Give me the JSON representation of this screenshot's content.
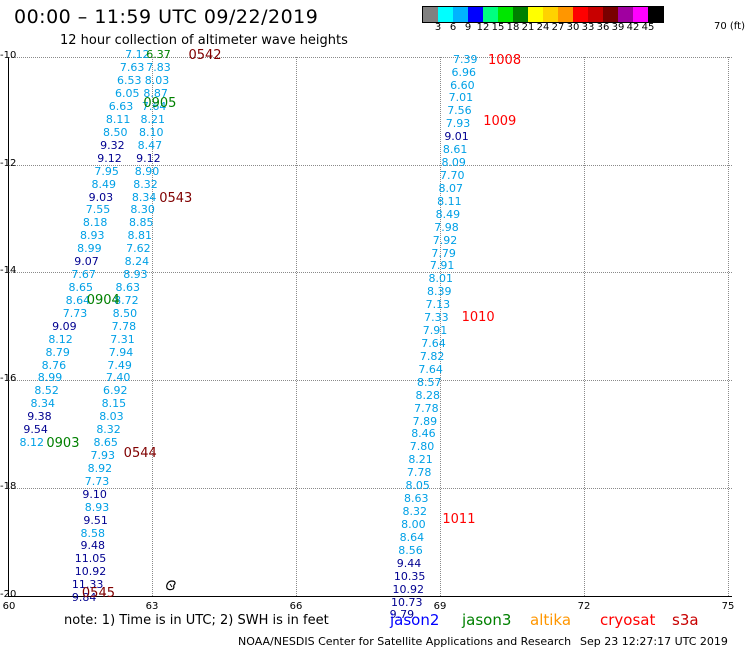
{
  "title": "00:00 – 11:59 UTC 09/22/2019",
  "subtitle": "12 hour collection of altimeter wave heights",
  "scale": {
    "labels": [
      "3",
      "6",
      "9",
      "12",
      "15",
      "18",
      "21",
      "24",
      "27",
      "30",
      "33",
      "36",
      "39",
      "42",
      "45",
      "70 (ft)"
    ],
    "colors": [
      "#808080",
      "#00ffff",
      "#00b4ff",
      "#0000ff",
      "#00ff80",
      "#00e600",
      "#008000",
      "#ffff00",
      "#ffd200",
      "#ff9600",
      "#ff0000",
      "#c80000",
      "#780000",
      "#a000a0",
      "#ff00ff",
      "#000000"
    ]
  },
  "axes": {
    "lon_labels": [
      "60",
      "63",
      "66",
      "69",
      "72",
      "75"
    ],
    "lat_labels": [
      "-10",
      "-12",
      "-14",
      "-16",
      "-18",
      "-20"
    ]
  },
  "note": "note:  1) Time is in UTC;  2) SWH is in feet",
  "satellites": [
    {
      "name": "jason2",
      "color": "#0000ff"
    },
    {
      "name": "jason3",
      "color": "#008000"
    },
    {
      "name": "altika",
      "color": "#ff9600"
    },
    {
      "name": "cryosat",
      "color": "#ff0000"
    },
    {
      "name": "s3a",
      "color": "#c80000"
    }
  ],
  "credit": "NOAA/NESDIS Center for Satellite Applications and Research",
  "timestamp": "Sep 23 12:27:17 UTC 2019",
  "colors": {
    "cyan": "#00a0e6",
    "navy": "#000090",
    "green": "#008000",
    "maroon": "#800000",
    "red": "#ff0000"
  },
  "map_data": {
    "swh": [
      {
        "v": "7.12",
        "c": "#00a0e6",
        "lon": 62.44,
        "lat": -9.97
      },
      {
        "v": "7.63",
        "c": "#00a0e6",
        "lon": 62.33,
        "lat": -10.21
      },
      {
        "v": "6.53",
        "c": "#00a0e6",
        "lon": 62.27,
        "lat": -10.45
      },
      {
        "v": "6.05",
        "c": "#00a0e6",
        "lon": 62.23,
        "lat": -10.69
      },
      {
        "v": "6.63",
        "c": "#00a0e6",
        "lon": 62.1,
        "lat": -10.93
      },
      {
        "v": "8.11",
        "c": "#00a0e6",
        "lon": 62.04,
        "lat": -11.17
      },
      {
        "v": "8.50",
        "c": "#00a0e6",
        "lon": 61.98,
        "lat": -11.41
      },
      {
        "v": "9.32",
        "c": "#000090",
        "lon": 61.92,
        "lat": -11.65
      },
      {
        "v": "9.12",
        "c": "#000090",
        "lon": 61.86,
        "lat": -11.89
      },
      {
        "v": "7.95",
        "c": "#00a0e6",
        "lon": 61.8,
        "lat": -12.13
      },
      {
        "v": "8.49",
        "c": "#00a0e6",
        "lon": 61.74,
        "lat": -12.37
      },
      {
        "v": "9.03",
        "c": "#000090",
        "lon": 61.68,
        "lat": -12.61
      },
      {
        "v": "7.55",
        "c": "#00a0e6",
        "lon": 61.62,
        "lat": -12.85
      },
      {
        "v": "8.18",
        "c": "#00a0e6",
        "lon": 61.56,
        "lat": -13.09
      },
      {
        "v": "8.93",
        "c": "#00a0e6",
        "lon": 61.5,
        "lat": -13.33
      },
      {
        "v": "8.99",
        "c": "#00a0e6",
        "lon": 61.44,
        "lat": -13.57
      },
      {
        "v": "9.07",
        "c": "#000090",
        "lon": 61.38,
        "lat": -13.81
      },
      {
        "v": "7.67",
        "c": "#00a0e6",
        "lon": 61.32,
        "lat": -14.05
      },
      {
        "v": "8.65",
        "c": "#00a0e6",
        "lon": 61.26,
        "lat": -14.29
      },
      {
        "v": "8.64",
        "c": "#00a0e6",
        "lon": 61.2,
        "lat": -14.53
      },
      {
        "v": "7.73",
        "c": "#00a0e6",
        "lon": 61.14,
        "lat": -14.77
      },
      {
        "v": "9.09",
        "c": "#000090",
        "lon": 60.92,
        "lat": -15.01
      },
      {
        "v": "8.12",
        "c": "#00a0e6",
        "lon": 60.84,
        "lat": -15.25
      },
      {
        "v": "8.79",
        "c": "#00a0e6",
        "lon": 60.78,
        "lat": -15.49
      },
      {
        "v": "8.76",
        "c": "#00a0e6",
        "lon": 60.7,
        "lat": -15.73
      },
      {
        "v": "8.99",
        "c": "#00a0e6",
        "lon": 60.62,
        "lat": -15.97
      },
      {
        "v": "8.52",
        "c": "#00a0e6",
        "lon": 60.55,
        "lat": -16.21
      },
      {
        "v": "8.34",
        "c": "#00a0e6",
        "lon": 60.47,
        "lat": -16.45
      },
      {
        "v": "9.38",
        "c": "#000090",
        "lon": 60.4,
        "lat": -16.69
      },
      {
        "v": "9.54",
        "c": "#000090",
        "lon": 60.32,
        "lat": -16.93
      },
      {
        "v": "8.12",
        "c": "#00a0e6",
        "lon": 60.24,
        "lat": -17.17
      },
      {
        "v": "6.37",
        "c": "#008000",
        "lon": 62.88,
        "lat": -9.97
      },
      {
        "v": "7.83",
        "c": "#00a0e6",
        "lon": 62.88,
        "lat": -10.21
      },
      {
        "v": "8.03",
        "c": "#00a0e6",
        "lon": 62.85,
        "lat": -10.45
      },
      {
        "v": "8.87",
        "c": "#00a0e6",
        "lon": 62.82,
        "lat": -10.69
      },
      {
        "v": "7.64",
        "c": "#00a0e6",
        "lon": 62.79,
        "lat": -10.93
      },
      {
        "v": "8.21",
        "c": "#00a0e6",
        "lon": 62.76,
        "lat": -11.17
      },
      {
        "v": "8.10",
        "c": "#00a0e6",
        "lon": 62.73,
        "lat": -11.41
      },
      {
        "v": "8.47",
        "c": "#00a0e6",
        "lon": 62.7,
        "lat": -11.65
      },
      {
        "v": "9.12",
        "c": "#000090",
        "lon": 62.67,
        "lat": -11.89
      },
      {
        "v": "8.90",
        "c": "#00a0e6",
        "lon": 62.64,
        "lat": -12.13
      },
      {
        "v": "8.32",
        "c": "#00a0e6",
        "lon": 62.61,
        "lat": -12.37
      },
      {
        "v": "8.34",
        "c": "#00a0e6",
        "lon": 62.58,
        "lat": -12.61
      },
      {
        "v": "8.30",
        "c": "#00a0e6",
        "lon": 62.55,
        "lat": -12.85
      },
      {
        "v": "8.85",
        "c": "#00a0e6",
        "lon": 62.52,
        "lat": -13.09
      },
      {
        "v": "8.81",
        "c": "#00a0e6",
        "lon": 62.49,
        "lat": -13.33
      },
      {
        "v": "7.62",
        "c": "#00a0e6",
        "lon": 62.46,
        "lat": -13.57
      },
      {
        "v": "8.24",
        "c": "#00a0e6",
        "lon": 62.43,
        "lat": -13.81
      },
      {
        "v": "8.93",
        "c": "#00a0e6",
        "lon": 62.4,
        "lat": -14.05
      },
      {
        "v": "8.63",
        "c": "#00a0e6",
        "lon": 62.24,
        "lat": -14.29
      },
      {
        "v": "8.72",
        "c": "#00a0e6",
        "lon": 62.21,
        "lat": -14.53
      },
      {
        "v": "8.50",
        "c": "#00a0e6",
        "lon": 62.18,
        "lat": -14.77
      },
      {
        "v": "7.78",
        "c": "#00a0e6",
        "lon": 62.16,
        "lat": -15.01
      },
      {
        "v": "7.31",
        "c": "#00a0e6",
        "lon": 62.13,
        "lat": -15.25
      },
      {
        "v": "7.94",
        "c": "#00a0e6",
        "lon": 62.1,
        "lat": -15.49
      },
      {
        "v": "7.49",
        "c": "#00a0e6",
        "lon": 62.07,
        "lat": -15.73
      },
      {
        "v": "7.40",
        "c": "#00a0e6",
        "lon": 62.04,
        "lat": -15.97
      },
      {
        "v": "6.92",
        "c": "#00a0e6",
        "lon": 61.98,
        "lat": -16.21
      },
      {
        "v": "8.15",
        "c": "#00a0e6",
        "lon": 61.95,
        "lat": -16.45
      },
      {
        "v": "8.03",
        "c": "#00a0e6",
        "lon": 61.9,
        "lat": -16.69
      },
      {
        "v": "8.32",
        "c": "#00a0e6",
        "lon": 61.84,
        "lat": -16.93
      },
      {
        "v": "8.65",
        "c": "#00a0e6",
        "lon": 61.78,
        "lat": -17.17
      },
      {
        "v": "7.93",
        "c": "#00a0e6",
        "lon": 61.72,
        "lat": -17.41
      },
      {
        "v": "8.92",
        "c": "#00a0e6",
        "lon": 61.66,
        "lat": -17.65
      },
      {
        "v": "7.73",
        "c": "#00a0e6",
        "lon": 61.6,
        "lat": -17.89
      },
      {
        "v": "9.10",
        "c": "#000090",
        "lon": 61.55,
        "lat": -18.13
      },
      {
        "v": "8.93",
        "c": "#00a0e6",
        "lon": 61.6,
        "lat": -18.37
      },
      {
        "v": "9.51",
        "c": "#000090",
        "lon": 61.57,
        "lat": -18.61
      },
      {
        "v": "8.58",
        "c": "#00a0e6",
        "lon": 61.51,
        "lat": -18.85
      },
      {
        "v": "9.48",
        "c": "#000090",
        "lon": 61.51,
        "lat": -19.09
      },
      {
        "v": "11.05",
        "c": "#000090",
        "lon": 61.39,
        "lat": -19.33
      },
      {
        "v": "10.92",
        "c": "#000090",
        "lon": 61.39,
        "lat": -19.57
      },
      {
        "v": "11.33",
        "c": "#000090",
        "lon": 61.33,
        "lat": -19.81
      },
      {
        "v": "9.84",
        "c": "#000090",
        "lon": 61.33,
        "lat": -20.05
      },
      {
        "v": "7.39",
        "c": "#00a0e6",
        "lon": 69.27,
        "lat": -10.05
      },
      {
        "v": "6.96",
        "c": "#00a0e6",
        "lon": 69.24,
        "lat": -10.29
      },
      {
        "v": "6.60",
        "c": "#00a0e6",
        "lon": 69.21,
        "lat": -10.53
      },
      {
        "v": "7.01",
        "c": "#00a0e6",
        "lon": 69.18,
        "lat": -10.77
      },
      {
        "v": "7.56",
        "c": "#00a0e6",
        "lon": 69.15,
        "lat": -11.01
      },
      {
        "v": "7.93",
        "c": "#00a0e6",
        "lon": 69.12,
        "lat": -11.25
      },
      {
        "v": "9.01",
        "c": "#000090",
        "lon": 69.09,
        "lat": -11.49
      },
      {
        "v": "8.61",
        "c": "#00a0e6",
        "lon": 69.06,
        "lat": -11.73
      },
      {
        "v": "8.09",
        "c": "#00a0e6",
        "lon": 69.03,
        "lat": -11.97
      },
      {
        "v": "7.70",
        "c": "#00a0e6",
        "lon": 69.0,
        "lat": -12.21
      },
      {
        "v": "8.07",
        "c": "#00a0e6",
        "lon": 68.97,
        "lat": -12.45
      },
      {
        "v": "8.11",
        "c": "#00a0e6",
        "lon": 68.94,
        "lat": -12.69
      },
      {
        "v": "8.49",
        "c": "#00a0e6",
        "lon": 68.91,
        "lat": -12.93
      },
      {
        "v": "7.98",
        "c": "#00a0e6",
        "lon": 68.88,
        "lat": -13.17
      },
      {
        "v": "7.92",
        "c": "#00a0e6",
        "lon": 68.85,
        "lat": -13.41
      },
      {
        "v": "7.79",
        "c": "#00a0e6",
        "lon": 68.82,
        "lat": -13.65
      },
      {
        "v": "7.91",
        "c": "#00a0e6",
        "lon": 68.79,
        "lat": -13.89
      },
      {
        "v": "8.01",
        "c": "#00a0e6",
        "lon": 68.76,
        "lat": -14.13
      },
      {
        "v": "8.39",
        "c": "#00a0e6",
        "lon": 68.73,
        "lat": -14.37
      },
      {
        "v": "7.13",
        "c": "#00a0e6",
        "lon": 68.7,
        "lat": -14.61
      },
      {
        "v": "7.33",
        "c": "#00a0e6",
        "lon": 68.67,
        "lat": -14.85
      },
      {
        "v": "7.91",
        "c": "#00a0e6",
        "lon": 68.64,
        "lat": -15.09
      },
      {
        "v": "7.64",
        "c": "#00a0e6",
        "lon": 68.61,
        "lat": -15.33
      },
      {
        "v": "7.82",
        "c": "#00a0e6",
        "lon": 68.58,
        "lat": -15.57
      },
      {
        "v": "7.64",
        "c": "#00a0e6",
        "lon": 68.55,
        "lat": -15.81
      },
      {
        "v": "8.57",
        "c": "#00a0e6",
        "lon": 68.52,
        "lat": -16.05
      },
      {
        "v": "8.28",
        "c": "#00a0e6",
        "lon": 68.49,
        "lat": -16.29
      },
      {
        "v": "7.78",
        "c": "#00a0e6",
        "lon": 68.46,
        "lat": -16.53
      },
      {
        "v": "7.89",
        "c": "#00a0e6",
        "lon": 68.43,
        "lat": -16.77
      },
      {
        "v": "8.46",
        "c": "#00a0e6",
        "lon": 68.4,
        "lat": -17.01
      },
      {
        "v": "7.80",
        "c": "#00a0e6",
        "lon": 68.37,
        "lat": -17.25
      },
      {
        "v": "8.21",
        "c": "#00a0e6",
        "lon": 68.34,
        "lat": -17.49
      },
      {
        "v": "7.78",
        "c": "#00a0e6",
        "lon": 68.31,
        "lat": -17.73
      },
      {
        "v": "8.05",
        "c": "#00a0e6",
        "lon": 68.28,
        "lat": -17.97
      },
      {
        "v": "8.63",
        "c": "#00a0e6",
        "lon": 68.25,
        "lat": -18.21
      },
      {
        "v": "8.32",
        "c": "#00a0e6",
        "lon": 68.22,
        "lat": -18.45
      },
      {
        "v": "8.00",
        "c": "#00a0e6",
        "lon": 68.19,
        "lat": -18.69
      },
      {
        "v": "8.64",
        "c": "#00a0e6",
        "lon": 68.16,
        "lat": -18.93
      },
      {
        "v": "8.56",
        "c": "#00a0e6",
        "lon": 68.13,
        "lat": -19.17
      },
      {
        "v": "9.44",
        "c": "#000090",
        "lon": 68.1,
        "lat": -19.41
      },
      {
        "v": "10.35",
        "c": "#000090",
        "lon": 68.04,
        "lat": -19.65
      },
      {
        "v": "10.92",
        "c": "#000090",
        "lon": 68.01,
        "lat": -19.89
      },
      {
        "v": "10.73",
        "c": "#000090",
        "lon": 67.98,
        "lat": -20.13
      },
      {
        "v": "9.79",
        "c": "#000090",
        "lon": 67.95,
        "lat": -20.37
      }
    ],
    "times": [
      {
        "t": "0542",
        "c": "#800000",
        "lon": 63.76,
        "lat": -9.99
      },
      {
        "t": "0905",
        "c": "#008000",
        "lon": 62.82,
        "lat": -10.87
      },
      {
        "t": "0543",
        "c": "#800000",
        "lon": 63.15,
        "lat": -12.64
      },
      {
        "t": "0904",
        "c": "#008000",
        "lon": 61.64,
        "lat": -14.54
      },
      {
        "t": "0903",
        "c": "#008000",
        "lon": 60.8,
        "lat": -17.18
      },
      {
        "t": "0544",
        "c": "#800000",
        "lon": 62.41,
        "lat": -17.37
      },
      {
        "t": "0545",
        "c": "#800000",
        "lon": 61.54,
        "lat": -19.97
      },
      {
        "t": "1008",
        "c": "#ff0000",
        "lon": 70.0,
        "lat": -10.07
      },
      {
        "t": "1009",
        "c": "#ff0000",
        "lon": 69.9,
        "lat": -11.21
      },
      {
        "t": "1010",
        "c": "#ff0000",
        "lon": 69.45,
        "lat": -14.85
      },
      {
        "t": "1011",
        "c": "#ff0000",
        "lon": 69.05,
        "lat": -18.59
      }
    ]
  }
}
